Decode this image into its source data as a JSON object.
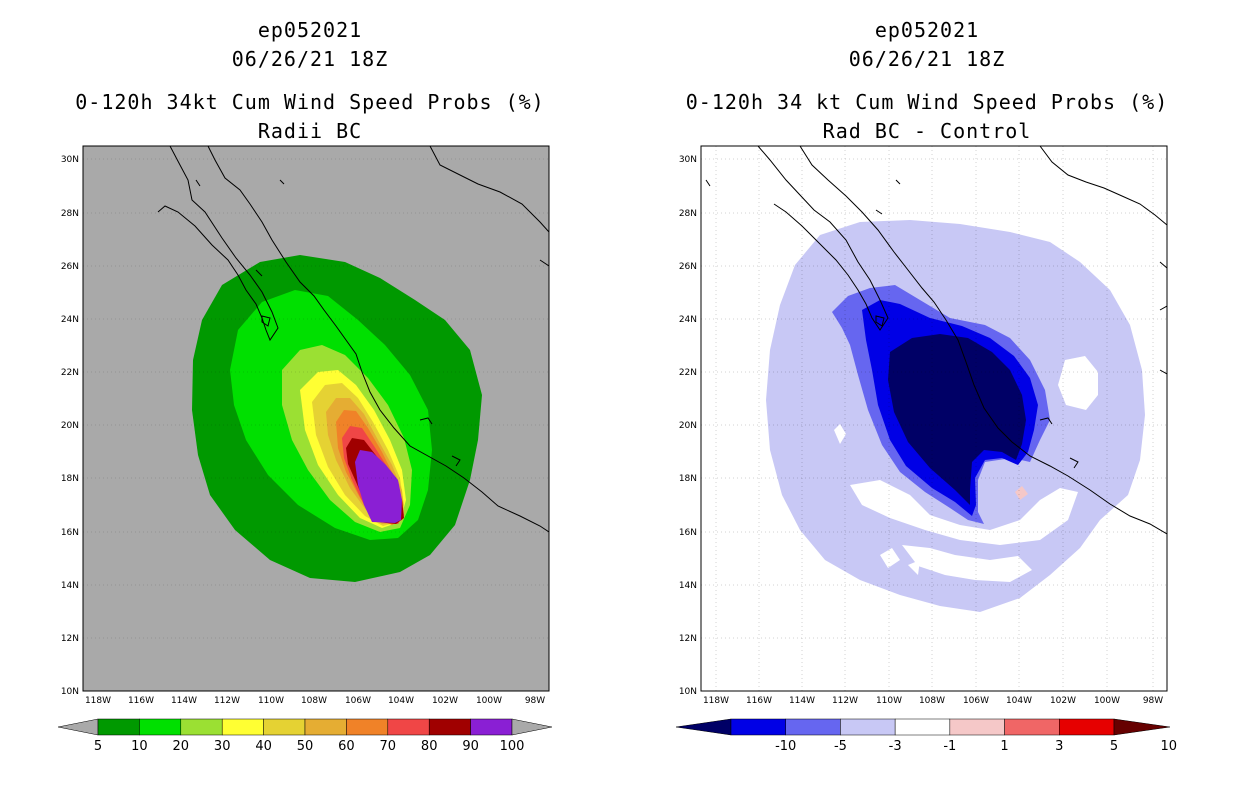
{
  "left": {
    "title_lines": [
      "ep052021",
      "06/26/21 18Z",
      "0-120h 34kt Cum Wind Speed Probs (%)",
      "Radii BC"
    ],
    "lat_labels": [
      "30N",
      "28N",
      "26N",
      "24N",
      "22N",
      "20N",
      "18N",
      "16N",
      "14N",
      "12N",
      "10N"
    ],
    "lon_labels": [
      "118W",
      "116W",
      "114W",
      "112W",
      "110W",
      "108W",
      "106W",
      "104W",
      "102W",
      "100W",
      "98W"
    ],
    "colorbar": {
      "labels": [
        "5",
        "10",
        "20",
        "30",
        "40",
        "50",
        "60",
        "70",
        "80",
        "90",
        "100"
      ],
      "colors": [
        "#009900",
        "#00e000",
        "#9be033",
        "#ffff33",
        "#e5d233",
        "#e5ad33",
        "#f08228",
        "#f04646",
        "#a00000",
        "#8a1fd4"
      ]
    },
    "colors": {
      "background": "#a9a9a9"
    }
  },
  "right": {
    "title_lines": [
      "ep052021",
      "06/26/21 18Z",
      "0-120h 34 kt Cum Wind Speed Probs (%)",
      "Rad BC - Control"
    ],
    "lat_labels": [
      "30N",
      "28N",
      "26N",
      "24N",
      "22N",
      "20N",
      "18N",
      "16N",
      "14N",
      "12N",
      "10N"
    ],
    "lon_labels": [
      "118W",
      "116W",
      "114W",
      "112W",
      "110W",
      "108W",
      "106W",
      "104W",
      "102W",
      "100W",
      "98W"
    ],
    "colorbar": {
      "labels": [
        "-10",
        "-5",
        "-3",
        "-1",
        "1",
        "3",
        "5",
        "10"
      ],
      "colors": [
        "#000066",
        "#0000e6",
        "#6666f0",
        "#c8c8f5",
        "#ffffff",
        "#f5c8c8",
        "#f06666",
        "#e60000",
        "#660000"
      ]
    }
  }
}
